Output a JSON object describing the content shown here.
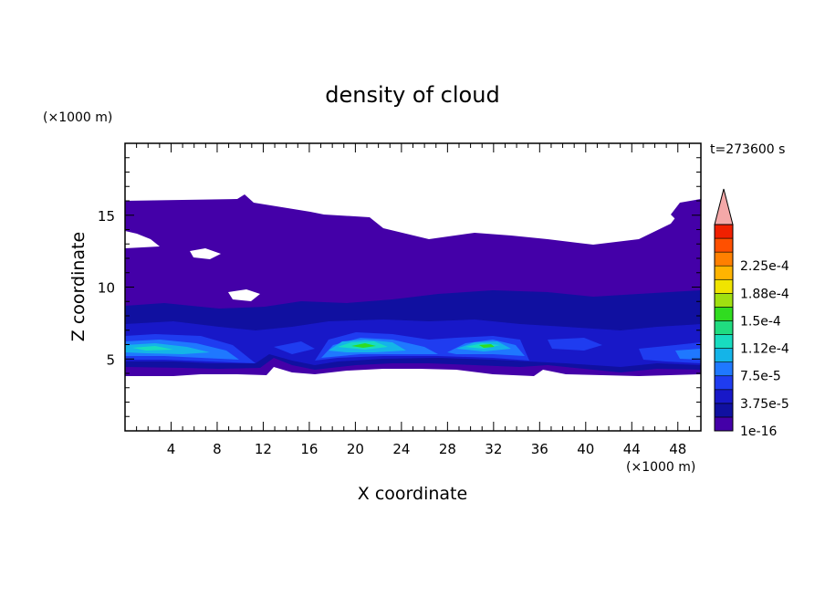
{
  "chart_data": {
    "type": "heatmap",
    "title": "density of cloud",
    "xlabel": "X coordinate",
    "ylabel": "Z coordinate",
    "x_unit": "(×1000 m)",
    "y_unit": "(×1000 m)",
    "time_label": "t=273600 s",
    "xlim": [
      0,
      50
    ],
    "ylim": [
      0,
      20
    ],
    "x_ticks": [
      "4",
      "8",
      "12",
      "16",
      "20",
      "24",
      "28",
      "32",
      "36",
      "40",
      "44",
      "48"
    ],
    "y_ticks": [
      "5",
      "10",
      "15"
    ],
    "colorbar": {
      "labels": [
        "1e-16",
        "3.75e-5",
        "7.5e-5",
        "1.12e-4",
        "1.5e-4",
        "1.88e-4",
        "2.25e-4"
      ],
      "colors": [
        "#4400a8",
        "#1010a0",
        "#1818c8",
        "#1f3cf0",
        "#1f78ff",
        "#14b4e8",
        "#18dcc0",
        "#20dc80",
        "#30dc20",
        "#a0e010",
        "#f0e400",
        "#ffb400",
        "#ff8000",
        "#ff5000",
        "#f02000"
      ],
      "overflow_color": "#f4a8a8"
    }
  }
}
